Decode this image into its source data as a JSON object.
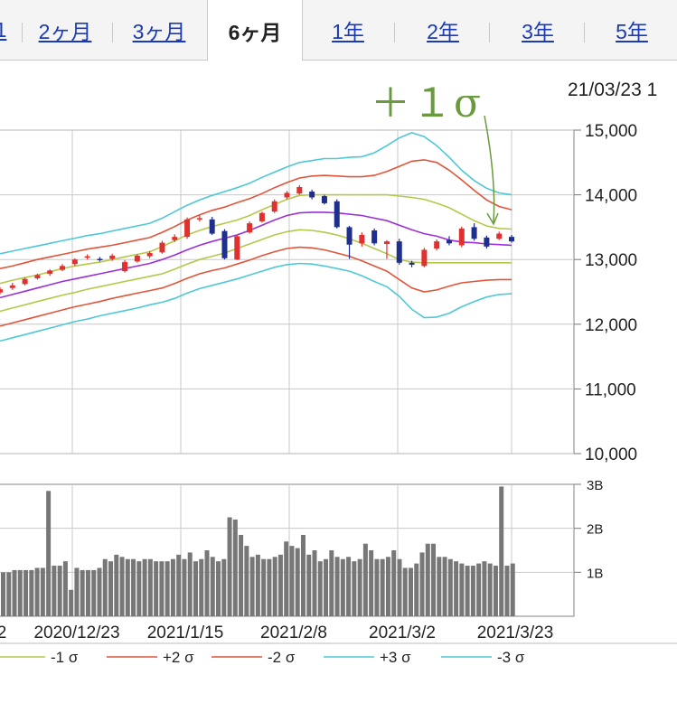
{
  "tabs": [
    {
      "label": "1",
      "active": false
    },
    {
      "label": "2ヶ月",
      "active": false
    },
    {
      "label": "3ヶ月",
      "active": false
    },
    {
      "label": "6ヶ月",
      "active": true
    },
    {
      "label": "1年",
      "active": false
    },
    {
      "label": "2年",
      "active": false
    },
    {
      "label": "3年",
      "active": false
    },
    {
      "label": "5年",
      "active": false
    }
  ],
  "annotation": "＋１σ",
  "date_label": "21/03/23 1",
  "colors": {
    "tab_link": "#1a3bb5",
    "up_candle": "#e03030",
    "down_candle": "#1f2f8c",
    "ma": "#9b30d9",
    "sigma1": "#b5c84a",
    "sigma2": "#e0553a",
    "sigma3": "#4ec8d6",
    "volume": "#777777",
    "annotation": "#6a9a3e"
  },
  "chart_data": [
    {
      "type": "candlestick",
      "y_ticks": [
        "15,000",
        "14,000",
        "13,000",
        "12,000",
        "11,000",
        "10,000"
      ],
      "y_tick_values": [
        15000,
        14000,
        13000,
        12000,
        11000,
        10000
      ],
      "ylim": [
        10000,
        15000
      ],
      "x_tick_labels": [
        "2",
        "2020/12/23",
        "2021/1/15",
        "2021/2/8",
        "2021/3/2",
        "2021/3/23"
      ],
      "series": [
        {
          "name": "+1σ",
          "values": [
            12630,
            12680,
            12720,
            12760,
            12810,
            12860,
            12900,
            12930,
            12960,
            13000,
            13040,
            13080,
            13120,
            13200,
            13290,
            13380,
            13450,
            13510,
            13560,
            13610,
            13680,
            13770,
            13850,
            13930,
            13990,
            14000,
            14000,
            14000,
            14000,
            14000,
            14000,
            14000,
            13980,
            13960,
            13930,
            13870,
            13800,
            13700,
            13600,
            13520,
            13480,
            13470
          ]
        },
        {
          "name": "-1σ",
          "values": [
            12200,
            12250,
            12300,
            12350,
            12400,
            12450,
            12490,
            12540,
            12580,
            12620,
            12660,
            12700,
            12740,
            12780,
            12850,
            12930,
            13000,
            13050,
            13100,
            13170,
            13240,
            13310,
            13380,
            13430,
            13460,
            13450,
            13420,
            13380,
            13320,
            13250,
            13170,
            13090,
            13000,
            12960,
            12950,
            12950,
            12950,
            12950,
            12950,
            12950,
            12950,
            12950
          ]
        },
        {
          "name": "+2σ",
          "values": [
            12860,
            12900,
            12950,
            13000,
            13040,
            13080,
            13120,
            13160,
            13190,
            13220,
            13260,
            13300,
            13340,
            13420,
            13510,
            13610,
            13690,
            13760,
            13810,
            13880,
            13940,
            14020,
            14110,
            14190,
            14260,
            14290,
            14300,
            14290,
            14280,
            14280,
            14300,
            14360,
            14440,
            14520,
            14540,
            14500,
            14380,
            14230,
            14070,
            13920,
            13820,
            13770
          ]
        },
        {
          "name": "-2σ",
          "values": [
            11970,
            12020,
            12070,
            12120,
            12170,
            12220,
            12270,
            12310,
            12350,
            12400,
            12440,
            12480,
            12520,
            12560,
            12630,
            12710,
            12780,
            12830,
            12870,
            12930,
            12990,
            13060,
            13120,
            13170,
            13190,
            13180,
            13150,
            13100,
            13050,
            12980,
            12900,
            12820,
            12690,
            12560,
            12500,
            12530,
            12590,
            12640,
            12660,
            12680,
            12690,
            12690
          ]
        },
        {
          "name": "+3σ",
          "values": [
            13090,
            13130,
            13170,
            13210,
            13250,
            13290,
            13330,
            13370,
            13400,
            13440,
            13480,
            13520,
            13560,
            13640,
            13740,
            13840,
            13920,
            13990,
            14050,
            14110,
            14180,
            14270,
            14350,
            14430,
            14500,
            14530,
            14560,
            14560,
            14580,
            14590,
            14650,
            14760,
            14880,
            14960,
            14900,
            14760,
            14580,
            14380,
            14220,
            14100,
            14030,
            14000
          ]
        },
        {
          "name": "-3σ",
          "values": [
            11740,
            11790,
            11840,
            11890,
            11940,
            11990,
            12040,
            12080,
            12130,
            12170,
            12210,
            12250,
            12300,
            12340,
            12400,
            12480,
            12550,
            12600,
            12650,
            12700,
            12760,
            12820,
            12880,
            12920,
            12940,
            12930,
            12900,
            12860,
            12820,
            12750,
            12660,
            12580,
            12430,
            12230,
            12100,
            12110,
            12170,
            12270,
            12350,
            12420,
            12460,
            12470
          ]
        },
        {
          "name": "MA",
          "values": [
            12410,
            12460,
            12510,
            12560,
            12610,
            12660,
            12700,
            12740,
            12780,
            12820,
            12860,
            12900,
            12940,
            13000,
            13070,
            13150,
            13220,
            13280,
            13330,
            13380,
            13450,
            13530,
            13610,
            13680,
            13720,
            13730,
            13730,
            13720,
            13700,
            13680,
            13640,
            13600,
            13530,
            13460,
            13400,
            13360,
            13300,
            13270,
            13260,
            13240,
            13230,
            13220
          ]
        },
        {
          "name": "candles_open",
          "values": [
            12490,
            12560,
            12620,
            12710,
            12780,
            12840,
            12930,
            13030,
            13010,
            13010,
            12820,
            12970,
            13050,
            13110,
            13300,
            13350,
            13620,
            13620,
            13440,
            13000,
            13420,
            13590,
            13740,
            13960,
            14020,
            14050,
            13980,
            13900,
            13500,
            13250,
            13450,
            13240,
            13280,
            12950,
            12900,
            13170,
            13300,
            13220,
            13500,
            13340,
            13320,
            13350
          ]
        },
        {
          "name": "candles_close",
          "values": [
            12540,
            12600,
            12700,
            12760,
            12830,
            12900,
            13000,
            13050,
            12990,
            13060,
            12960,
            13060,
            13100,
            13260,
            13350,
            13620,
            13640,
            13400,
            13020,
            13360,
            13560,
            13720,
            13900,
            14030,
            14120,
            13960,
            13870,
            13500,
            13230,
            13380,
            13250,
            13280,
            12950,
            12920,
            13150,
            13280,
            13250,
            13480,
            13320,
            13200,
            13400,
            13280
          ]
        },
        {
          "name": "candles_high",
          "values": [
            12570,
            12640,
            12720,
            12780,
            12850,
            12930,
            13020,
            13080,
            13040,
            13090,
            12990,
            13080,
            13130,
            13290,
            13390,
            13650,
            13680,
            13660,
            13470,
            13380,
            13590,
            13740,
            13930,
            14060,
            14150,
            14080,
            14000,
            13930,
            13520,
            13420,
            13480,
            13300,
            13320,
            12980,
            13180,
            13310,
            13360,
            13510,
            13560,
            13370,
            13430,
            13380
          ]
        },
        {
          "name": "candles_low",
          "values": [
            12460,
            12530,
            12600,
            12690,
            12750,
            12820,
            12900,
            13000,
            12970,
            12980,
            12800,
            12950,
            13020,
            13090,
            13270,
            13320,
            13590,
            13380,
            13000,
            12990,
            13400,
            13570,
            13720,
            13930,
            14000,
            13930,
            13850,
            13480,
            13010,
            13200,
            13220,
            13010,
            12920,
            12880,
            12880,
            13140,
            13220,
            13190,
            13290,
            13170,
            13300,
            13260
          ]
        }
      ]
    },
    {
      "type": "bar",
      "y_ticks": [
        "3B",
        "2B",
        "1B"
      ],
      "y_tick_values": [
        3,
        2,
        1
      ],
      "ylim": [
        0,
        3
      ],
      "series": [
        {
          "name": "volume",
          "values": [
            1.0,
            1.0,
            1.05,
            1.05,
            1.05,
            1.05,
            1.1,
            1.1,
            2.85,
            1.15,
            1.15,
            1.25,
            0.6,
            1.1,
            1.05,
            1.05,
            1.05,
            1.1,
            1.3,
            1.25,
            1.4,
            1.35,
            1.3,
            1.3,
            1.25,
            1.3,
            1.3,
            1.25,
            1.25,
            1.25,
            1.3,
            1.4,
            1.3,
            1.45,
            1.25,
            1.3,
            1.5,
            1.35,
            1.25,
            1.3,
            2.25,
            2.2,
            1.85,
            1.6,
            1.35,
            1.4,
            1.3,
            1.3,
            1.35,
            1.4,
            1.7,
            1.6,
            1.55,
            1.85,
            1.4,
            1.5,
            1.25,
            1.3,
            1.5,
            1.35,
            1.3,
            1.35,
            1.25,
            1.3,
            1.65,
            1.5,
            1.3,
            1.3,
            1.35,
            1.5,
            1.3,
            1.1,
            1.1,
            1.2,
            1.45,
            1.65,
            1.65,
            1.35,
            1.35,
            1.3,
            1.25,
            1.2,
            1.15,
            1.15,
            1.2,
            1.25,
            1.2,
            1.15,
            2.95,
            1.15,
            1.2
          ]
        }
      ]
    }
  ],
  "legend": [
    {
      "label": "-1 σ",
      "color": "#b5c84a"
    },
    {
      "label": "+2 σ",
      "color": "#e0553a"
    },
    {
      "label": "-2 σ",
      "color": "#e0553a"
    },
    {
      "label": "+3 σ",
      "color": "#4ec8d6"
    },
    {
      "label": "-3 σ",
      "color": "#4ec8d6"
    }
  ]
}
